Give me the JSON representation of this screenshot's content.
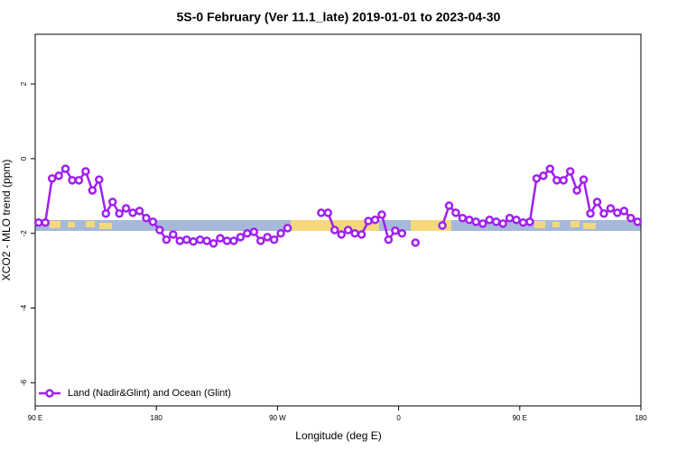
{
  "chart_data": {
    "type": "line",
    "title": "5S-0 February (Ver 11.1_late)   2019-01-01 to 2023-04-30",
    "xlabel": "Longitude (deg E)",
    "ylabel": "XCO2 - MLO trend (ppm)",
    "xlim": [
      90,
      540
    ],
    "ylim": [
      -6.62,
      3.33
    ],
    "xticks": [
      {
        "value": 90,
        "label": "90 E"
      },
      180,
      {
        "value": 270,
        "label": "90 W"
      },
      {
        "value": 360,
        "label": "0"
      },
      {
        "value": 450,
        "label": "90 E"
      },
      {
        "value": 540,
        "label": "180"
      }
    ],
    "yticks": [
      2,
      0,
      -2,
      -4,
      -6
    ],
    "legend": "bottom-left",
    "x": [
      92.5,
      97.5,
      102.5,
      107.5,
      112.5,
      117.5,
      122.5,
      127.5,
      132.5,
      137.5,
      142.5,
      147.5,
      152.5,
      157.5,
      162.5,
      167.5,
      172.5,
      177.5,
      182.5,
      187.5,
      192.5,
      197.5,
      202.5,
      207.5,
      212.5,
      217.5,
      222.5,
      227.5,
      232.5,
      237.5,
      242.5,
      247.5,
      252.5,
      257.5,
      262.5,
      267.5,
      272.5,
      277.5,
      282.5,
      287.5,
      292.5,
      297.5,
      302.5,
      307.5,
      312.5,
      317.5,
      322.5,
      327.5,
      332.5,
      337.5,
      342.5,
      347.5,
      352.5,
      357.5,
      362.5,
      367.5,
      372.5,
      377.5,
      382.5,
      387.5,
      392.5,
      397.5,
      402.5,
      407.5,
      412.5,
      417.5,
      422.5,
      427.5,
      432.5,
      437.5,
      442.5,
      447.5,
      452.5,
      457.5,
      462.5,
      467.5,
      472.5,
      477.5,
      482.5,
      487.5,
      492.5,
      497.5,
      502.5,
      507.5,
      512.5,
      517.5,
      522.5,
      527.5,
      532.5,
      537.5
    ],
    "series": [
      {
        "name": "Land (Nadir&Glint) and Ocean (Glint)",
        "color": "#a020f0",
        "values": [
          -1.71,
          -1.71,
          -0.53,
          -0.46,
          -0.27,
          -0.58,
          -0.58,
          -0.34,
          -0.85,
          -0.56,
          -1.47,
          -1.16,
          -1.47,
          -1.33,
          -1.45,
          -1.4,
          -1.59,
          -1.69,
          -1.91,
          -2.17,
          -2.03,
          -2.2,
          -2.17,
          -2.22,
          -2.17,
          -2.2,
          -2.27,
          -2.13,
          -2.2,
          -2.2,
          -2.1,
          -2.0,
          -1.96,
          -2.2,
          -2.1,
          -2.17,
          -2.0,
          -1.86,
          null,
          null,
          null,
          null,
          -1.45,
          -1.45,
          -1.91,
          -2.03,
          -1.91,
          -2.0,
          -2.03,
          -1.67,
          -1.64,
          -1.5,
          -2.17,
          -1.93,
          -2.0,
          null,
          -2.25,
          null,
          null,
          null,
          -1.79,
          -1.26,
          -1.45,
          -1.59,
          -1.64,
          -1.69,
          -1.74,
          -1.64,
          -1.69,
          -1.74,
          -1.59,
          -1.64,
          -1.71,
          -1.69,
          -0.53,
          -0.46,
          -0.27,
          -0.58,
          -0.58,
          -0.34,
          -0.85,
          -0.56,
          -1.47,
          -1.16,
          -1.47,
          -1.33,
          -1.45,
          -1.4,
          -1.59,
          -1.69
        ]
      }
    ]
  }
}
